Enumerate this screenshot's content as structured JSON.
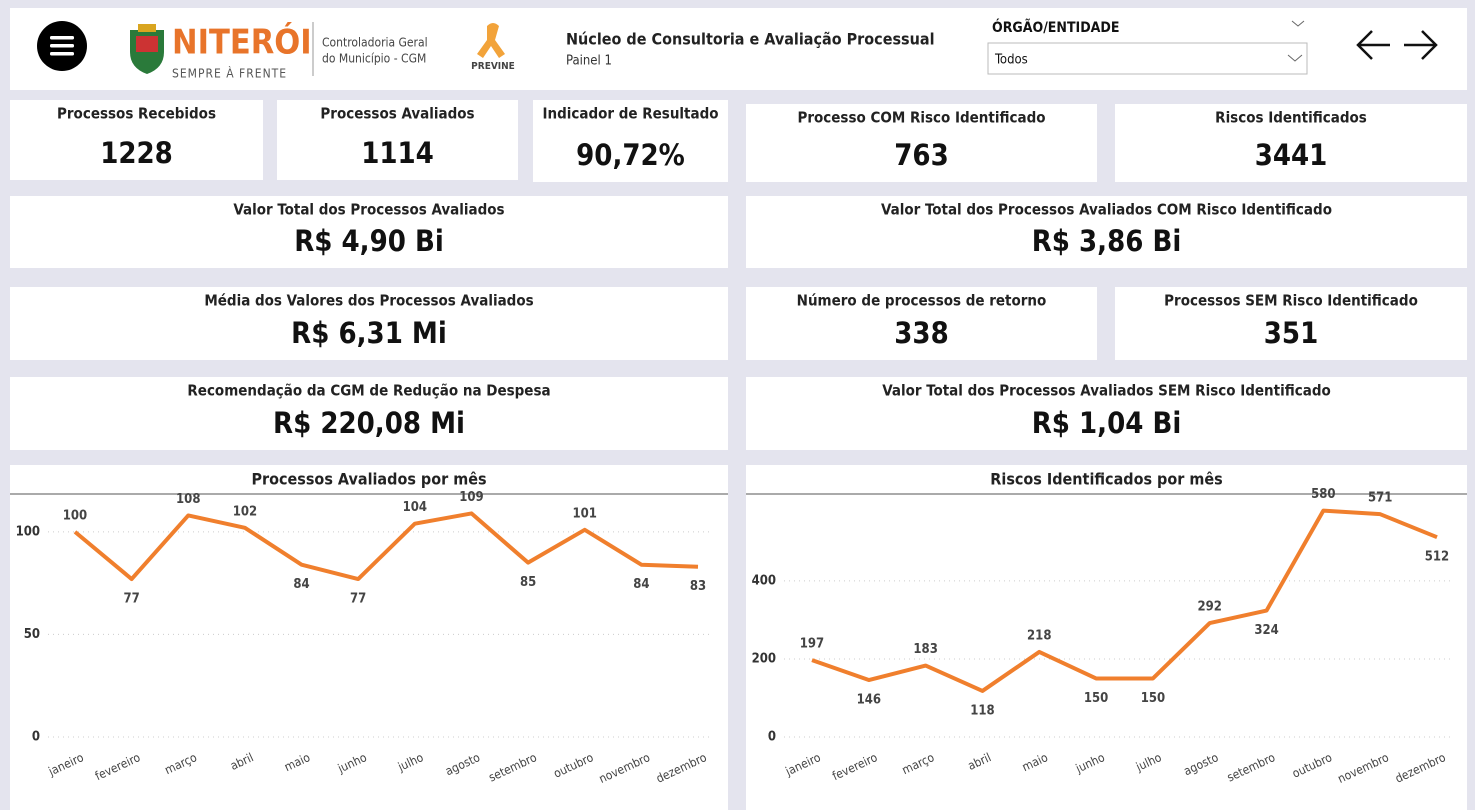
{
  "header": {
    "logo_name": "NITERÓI",
    "logo_sub": "SEMPRE À FRENTE",
    "org_line1": "Controladoria Geral",
    "org_line2": "do Município - CGM",
    "campaign": "PREVINE",
    "title": "Núcleo de Consultoria e Avaliação Processual",
    "subtitle": "Painel 1",
    "filter_label": "ÓRGÃO/ENTIDADE",
    "filter_value": "Todos"
  },
  "cards": [
    {
      "label": "Processos Recebidos",
      "value": "1228"
    },
    {
      "label": "Processos Avaliados",
      "value": "1114"
    },
    {
      "label": "Indicador de Resultado",
      "value": "90,72%"
    },
    {
      "label": "Processo COM Risco Identificado",
      "value": "763"
    },
    {
      "label": "Riscos Identificados",
      "value": "3441"
    },
    {
      "label": "Valor Total dos Processos Avaliados",
      "value": "R$ 4,90 Bi"
    },
    {
      "label": "Valor Total dos Processos Avaliados COM Risco Identificado",
      "value": "R$ 3,86 Bi"
    },
    {
      "label": "Média dos Valores dos Processos Avaliados",
      "value": "R$ 6,31 Mi"
    },
    {
      "label": "Número de processos de retorno",
      "value": "338"
    },
    {
      "label": "Processos SEM Risco Identificado",
      "value": "351"
    },
    {
      "label": "Recomendação da CGM de Redução na Despesa",
      "value": "R$ 220,08 Mi"
    },
    {
      "label": "Valor Total dos Processos Avaliados SEM Risco Identificado",
      "value": "R$ 1,04 Bi"
    }
  ],
  "chart_data": [
    {
      "type": "line",
      "title": "Processos Avaliados por mês",
      "categories": [
        "janeiro",
        "fevereiro",
        "março",
        "abril",
        "maio",
        "junho",
        "julho",
        "agosto",
        "setembro",
        "outubro",
        "novembro",
        "dezembro"
      ],
      "values": [
        100,
        77,
        108,
        102,
        84,
        77,
        104,
        109,
        85,
        101,
        84,
        83
      ],
      "color": "#f07f2d",
      "ylim": [
        0,
        117
      ],
      "yticks": [
        0,
        50,
        100
      ],
      "grid": true
    },
    {
      "type": "line",
      "title": "Riscos Identificados por mês",
      "categories": [
        "janeiro",
        "fevereiro",
        "março",
        "abril",
        "maio",
        "junho",
        "julho",
        "agosto",
        "setembro",
        "outubro",
        "novembro",
        "dezembro"
      ],
      "values": [
        197,
        146,
        183,
        118,
        218,
        150,
        150,
        292,
        324,
        580,
        571,
        512
      ],
      "color": "#f07f2d",
      "ylim": [
        0,
        615
      ],
      "yticks": [
        0,
        200,
        400
      ],
      "grid": true
    }
  ]
}
